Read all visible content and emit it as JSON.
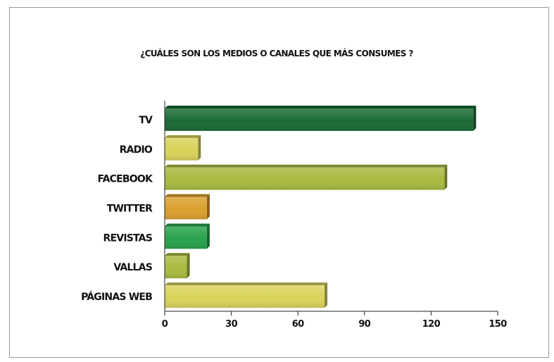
{
  "chart_data": {
    "type": "bar",
    "orientation": "horizontal",
    "title": "¿CUÁLES SON LOS MEDIOS O CANALES QUE MÁS CONSUMES ?",
    "categories": [
      "TV",
      "RADIO",
      "FACEBOOK",
      "TWITTER",
      "REVISTAS",
      "VALLAS",
      "PÁGINAS WEB"
    ],
    "values": [
      139,
      15,
      126,
      19,
      19,
      10,
      72
    ],
    "colors": [
      "#1a6b35",
      "#d9d35a",
      "#a9ba3f",
      "#dba02e",
      "#27a24c",
      "#a9ba3f",
      "#d9d35a"
    ],
    "xlim": [
      0,
      150
    ],
    "xticks": [
      0,
      30,
      60,
      90,
      120,
      150
    ],
    "xtick_labels": [
      "0",
      "30",
      "60",
      "90",
      "120",
      "150"
    ],
    "grid": false,
    "legend": "none",
    "xlabel": "",
    "ylabel": ""
  }
}
